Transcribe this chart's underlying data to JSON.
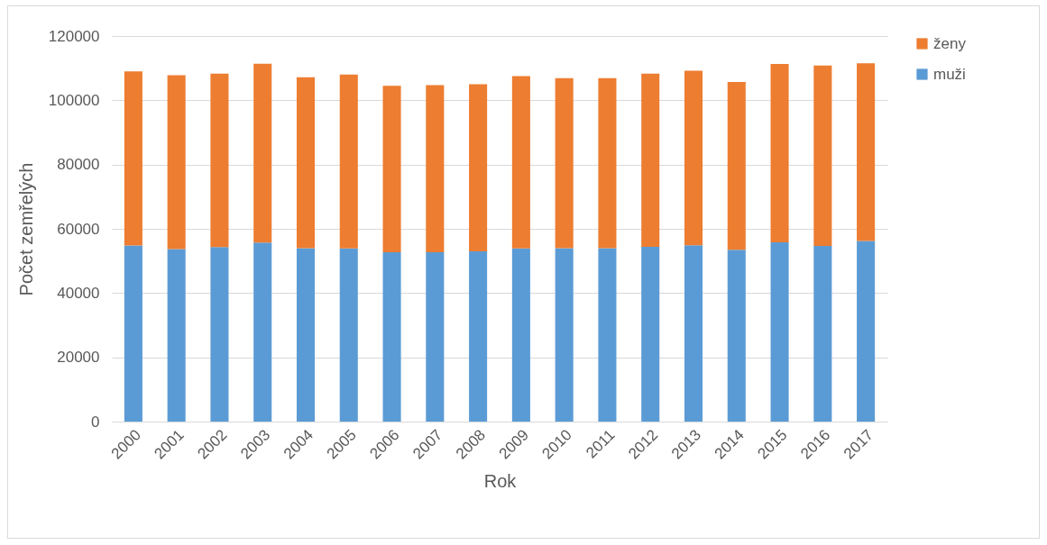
{
  "chart_data": {
    "type": "bar",
    "stacked": true,
    "xlabel": "Rok",
    "ylabel": "Počet zemřelých",
    "categories": [
      "2000",
      "2001",
      "2002",
      "2003",
      "2004",
      "2005",
      "2006",
      "2007",
      "2008",
      "2009",
      "2010",
      "2011",
      "2012",
      "2013",
      "2014",
      "2015",
      "2016",
      "2017"
    ],
    "series": [
      {
        "name": "muži",
        "color": "#5b9bd5",
        "values": [
          54800,
          53700,
          54300,
          55700,
          54000,
          53900,
          52700,
          52700,
          53000,
          53900,
          54000,
          54000,
          54400,
          54900,
          53500,
          55800,
          54700,
          56200
        ]
      },
      {
        "name": "ženy",
        "color": "#ed7d31",
        "values": [
          54200,
          54100,
          54000,
          55700,
          53200,
          54100,
          51800,
          52000,
          52000,
          53600,
          52900,
          52900,
          53900,
          54300,
          52200,
          55500,
          56100,
          55300
        ]
      }
    ],
    "ylim": [
      0,
      120000
    ],
    "yticks": [
      0,
      20000,
      40000,
      60000,
      80000,
      100000,
      120000
    ],
    "grid": "y",
    "legend": "right"
  }
}
